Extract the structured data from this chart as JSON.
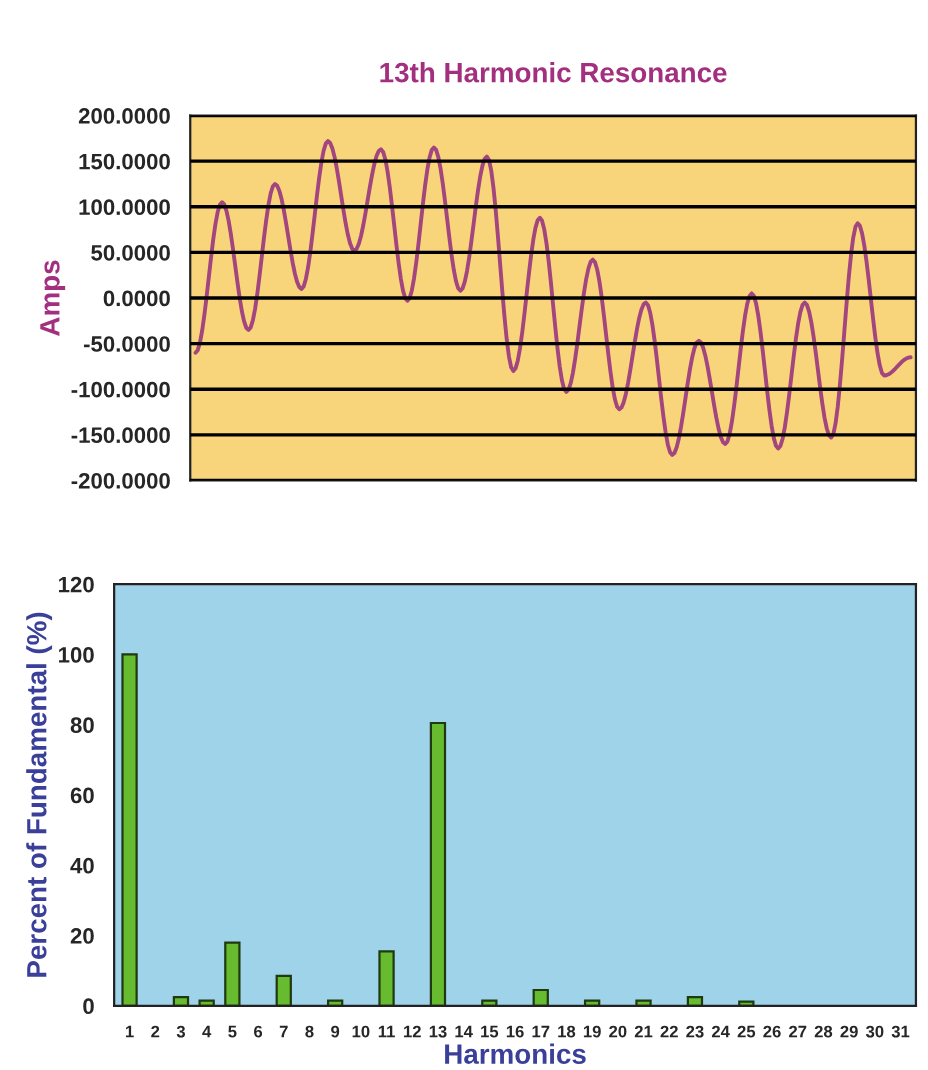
{
  "chart_data": [
    {
      "type": "line",
      "title": "13th Harmonic Resonance",
      "ylabel": "Amps",
      "categories": [
        null,
        null,
        null,
        null,
        null,
        null,
        null,
        null,
        null,
        null,
        null,
        null,
        null,
        null,
        null,
        null,
        null,
        null,
        null,
        null,
        null,
        null,
        null,
        null,
        null,
        null,
        null,
        null
      ],
      "series": [
        {
          "color": "#a3457e",
          "values": [
            -60,
            105,
            -35,
            125,
            10,
            172,
            52,
            163,
            -3,
            165,
            8,
            155,
            -80,
            88,
            -103,
            42,
            -122,
            -5,
            -172,
            -47,
            -160,
            5,
            -165,
            -5,
            -153,
            82,
            -85,
            -65
          ]
        }
      ],
      "ylim": [
        -200,
        200
      ],
      "yticks": [
        {
          "value": -200,
          "label": "-200.0000"
        },
        {
          "value": -150,
          "label": "-150.0000"
        },
        {
          "value": -100,
          "label": "-100.0000"
        },
        {
          "value": -50,
          "label": "-50.0000"
        },
        {
          "value": 0,
          "label": "0.0000"
        },
        {
          "value": 50,
          "label": "50.0000"
        },
        {
          "value": 100,
          "label": "100.0000"
        },
        {
          "value": 150,
          "label": "150.0000"
        },
        {
          "value": 200,
          "label": "200.0000"
        }
      ],
      "grid": "y",
      "legend": false,
      "tick_labels": "y"
    },
    {
      "type": "bar",
      "xlabel": "Harmonics",
      "ylabel": "Percent of Fundamental (%)",
      "categories": [
        "1",
        "2",
        "3",
        "4",
        "5",
        "6",
        "7",
        "8",
        "9",
        "10",
        "11",
        "12",
        "13",
        "14",
        "15",
        "16",
        "17",
        "18",
        "19",
        "20",
        "21",
        "22",
        "23",
        "24",
        "25",
        "26",
        "27",
        "28",
        "29",
        "30",
        "31"
      ],
      "values": [
        100,
        null,
        2.5,
        1.5,
        18,
        null,
        8.5,
        null,
        1.5,
        null,
        15.5,
        null,
        80.5,
        null,
        1.5,
        null,
        4.5,
        null,
        1.5,
        null,
        1.5,
        null,
        2.5,
        null,
        1.2,
        null,
        null,
        null,
        null,
        null,
        null
      ],
      "color": "#66bb2e",
      "ylim": [
        0,
        120
      ],
      "yticks": [
        0,
        20,
        40,
        60,
        80,
        100,
        120
      ],
      "grid": false,
      "legend": false
    }
  ]
}
